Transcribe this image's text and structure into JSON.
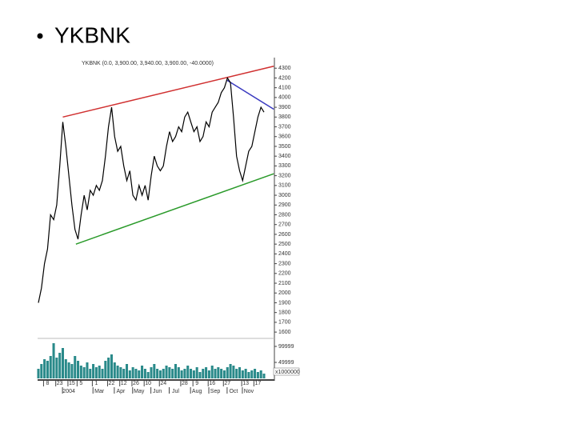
{
  "slide_title": "YKBNK",
  "chart_data": {
    "type": "line",
    "title": "YKBNK (0.0, 3,900.00, 3,940.00, 3,900.00, -40.0000)",
    "categories": [
      null,
      null,
      null,
      "8",
      null,
      null,
      null,
      "23",
      null,
      null,
      null,
      "15",
      null,
      null,
      "5",
      null,
      null,
      null,
      null,
      "1",
      null,
      null,
      null,
      null,
      "22",
      null,
      null,
      null,
      "12",
      null,
      null,
      null,
      "26",
      null,
      null,
      null,
      "10",
      null,
      null,
      null,
      null,
      "24",
      null,
      null,
      null,
      null,
      null,
      null,
      "28",
      null,
      null,
      null,
      "9",
      null,
      null,
      null,
      null,
      "16",
      null,
      null,
      null,
      null,
      "27",
      null,
      null,
      null,
      null,
      null,
      "13",
      null,
      null,
      null,
      "17",
      null,
      null
    ],
    "month_labels": [
      null,
      null,
      null,
      null,
      null,
      null,
      null,
      null,
      null,
      null,
      "2004",
      null,
      null,
      null,
      null,
      null,
      null,
      null,
      null,
      null,
      "Mar",
      null,
      null,
      null,
      null,
      null,
      null,
      "Apr",
      null,
      null,
      null,
      null,
      null,
      "May",
      null,
      null,
      null,
      null,
      null,
      "Jun",
      null,
      null,
      null,
      null,
      null,
      "Jul",
      null,
      null,
      null,
      null,
      null,
      null,
      "Aug",
      null,
      null,
      null,
      null,
      null,
      "Sep",
      null,
      null,
      null,
      null,
      null,
      "Oct",
      null,
      null,
      null,
      null,
      "Nov",
      null,
      null,
      null,
      null,
      null
    ],
    "series": [
      {
        "name": "YKBNK",
        "color": "#000000",
        "values": [
          1900,
          2050,
          2300,
          2450,
          2800,
          2750,
          2900,
          3300,
          3750,
          3500,
          3200,
          2900,
          2650,
          2550,
          2800,
          3000,
          2850,
          3050,
          3000,
          3100,
          3050,
          3150,
          3400,
          3700,
          3900,
          3600,
          3450,
          3500,
          3300,
          3150,
          3250,
          3000,
          2950,
          3100,
          3000,
          3100,
          2950,
          3200,
          3400,
          3300,
          3250,
          3300,
          3500,
          3650,
          3550,
          3600,
          3700,
          3650,
          3800,
          3850,
          3750,
          3650,
          3700,
          3550,
          3600,
          3750,
          3700,
          3850,
          3900,
          3950,
          4050,
          4100,
          4200,
          4150,
          3800,
          3400,
          3250,
          3150,
          3300,
          3450,
          3500,
          3650,
          3800,
          3900,
          3850
        ]
      }
    ],
    "ylim": [
      1560,
      4400
    ],
    "yticks": [
      1600,
      1700,
      1800,
      1900,
      2000,
      2100,
      2200,
      2300,
      2400,
      2500,
      2600,
      2700,
      2800,
      2900,
      3000,
      3100,
      3200,
      3300,
      3400,
      3500,
      3600,
      3700,
      3800,
      3900,
      4000,
      4100,
      4200,
      4300
    ],
    "trendlines": [
      {
        "color": "#d03030",
        "x": [
          8,
          77.2
        ],
        "values": [
          3800,
          4320
        ]
      },
      {
        "color": "#2a9a2a",
        "x": [
          12.3,
          77.2
        ],
        "values": [
          2500,
          3220
        ]
      },
      {
        "color": "#3a3ac0",
        "x": [
          61.7,
          77.2
        ],
        "values": [
          4180,
          3880
        ]
      }
    ],
    "volume": {
      "color": "#2a8a8a",
      "values": [
        30000,
        45000,
        60000,
        55000,
        70000,
        110000,
        65000,
        80000,
        95000,
        60000,
        50000,
        45000,
        70000,
        55000,
        40000,
        35000,
        50000,
        30000,
        45000,
        35000,
        40000,
        30000,
        55000,
        65000,
        75000,
        50000,
        40000,
        35000,
        30000,
        45000,
        25000,
        35000,
        30000,
        25000,
        40000,
        30000,
        20000,
        35000,
        45000,
        30000,
        25000,
        30000,
        40000,
        35000,
        30000,
        45000,
        35000,
        25000,
        30000,
        40000,
        30000,
        25000,
        35000,
        20000,
        30000,
        35000,
        25000,
        40000,
        30000,
        35000,
        30000,
        25000,
        35000,
        45000,
        40000,
        30000,
        35000,
        25000,
        30000,
        20000,
        25000,
        30000,
        20000,
        25000,
        15000
      ],
      "ylim": [
        0,
        120000
      ],
      "yticks": [
        49999,
        99999
      ],
      "scale_label": "x1000000"
    }
  }
}
